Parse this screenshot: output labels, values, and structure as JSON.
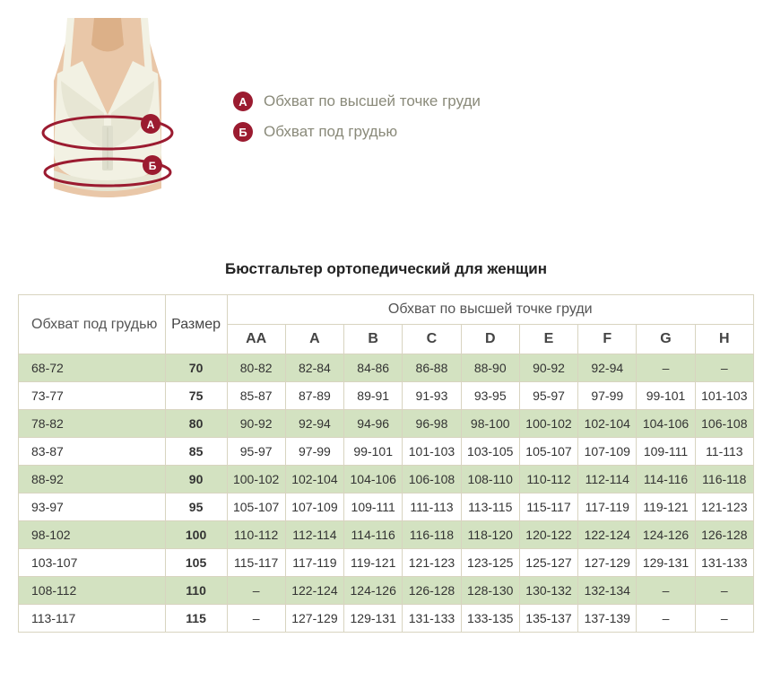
{
  "colors": {
    "badge": "#9b1b30",
    "ellipse": "#9b1b30",
    "skin": "#e9c7a8",
    "bra_light": "#f2f1e3",
    "bra_shadow": "#dcdccc",
    "legend_text": "#8a8a7a",
    "border": "#d8d4c0",
    "stripe": "#d3e2c1",
    "title_color": "#222222",
    "text_color": "#444444"
  },
  "legend": {
    "a": {
      "badge": "А",
      "text": "Обхват по высшей точке груди"
    },
    "b": {
      "badge": "Б",
      "text": "Обхват под грудью"
    }
  },
  "title": "Бюстгальтер ортопедический для женщин",
  "table": {
    "header_girth": "Обхват под грудью",
    "header_size": "Размер",
    "header_top": "Обхват по высшей точке груди",
    "cup_labels": [
      "AA",
      "A",
      "B",
      "C",
      "D",
      "E",
      "F",
      "G",
      "H"
    ],
    "rows": [
      {
        "girth": "68-72",
        "size": "70",
        "cells": [
          "80-82",
          "82-84",
          "84-86",
          "86-88",
          "88-90",
          "90-92",
          "92-94",
          "–",
          "–"
        ]
      },
      {
        "girth": "73-77",
        "size": "75",
        "cells": [
          "85-87",
          "87-89",
          "89-91",
          "91-93",
          "93-95",
          "95-97",
          "97-99",
          "99-101",
          "101-103"
        ]
      },
      {
        "girth": "78-82",
        "size": "80",
        "cells": [
          "90-92",
          "92-94",
          "94-96",
          "96-98",
          "98-100",
          "100-102",
          "102-104",
          "104-106",
          "106-108"
        ]
      },
      {
        "girth": "83-87",
        "size": "85",
        "cells": [
          "95-97",
          "97-99",
          "99-101",
          "101-103",
          "103-105",
          "105-107",
          "107-109",
          "109-111",
          "11-113"
        ]
      },
      {
        "girth": "88-92",
        "size": "90",
        "cells": [
          "100-102",
          "102-104",
          "104-106",
          "106-108",
          "108-110",
          "110-112",
          "112-114",
          "114-116",
          "116-118"
        ]
      },
      {
        "girth": "93-97",
        "size": "95",
        "cells": [
          "105-107",
          "107-109",
          "109-111",
          "111-113",
          "113-115",
          "115-117",
          "117-119",
          "119-121",
          "121-123"
        ]
      },
      {
        "girth": "98-102",
        "size": "100",
        "cells": [
          "110-112",
          "112-114",
          "114-116",
          "116-118",
          "118-120",
          "120-122",
          "122-124",
          "124-126",
          "126-128"
        ]
      },
      {
        "girth": "103-107",
        "size": "105",
        "cells": [
          "115-117",
          "117-119",
          "119-121",
          "121-123",
          "123-125",
          "125-127",
          "127-129",
          "129-131",
          "131-133"
        ]
      },
      {
        "girth": "108-112",
        "size": "110",
        "cells": [
          "–",
          "122-124",
          "124-126",
          "126-128",
          "128-130",
          "130-132",
          "132-134",
          "–",
          "–"
        ]
      },
      {
        "girth": "113-117",
        "size": "115",
        "cells": [
          "–",
          "127-129",
          "129-131",
          "131-133",
          "133-135",
          "135-137",
          "137-139",
          "–",
          "–"
        ]
      }
    ]
  }
}
